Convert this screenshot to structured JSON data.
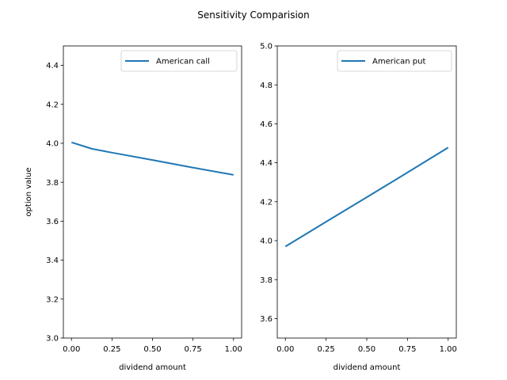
{
  "chart_data": [
    {
      "type": "line",
      "title": "",
      "xlabel": "dividend amount",
      "ylabel": "option value",
      "xlim": [
        -0.05,
        1.05
      ],
      "ylim": [
        3.0,
        4.5
      ],
      "xticks": [
        0.0,
        0.25,
        0.5,
        0.75,
        1.0
      ],
      "xtick_labels": [
        "0.00",
        "0.25",
        "0.50",
        "0.75",
        "1.00"
      ],
      "yticks": [
        3.0,
        3.2,
        3.4,
        3.6,
        3.8,
        4.0,
        4.2,
        4.4
      ],
      "ytick_labels": [
        "3.0",
        "3.2",
        "3.4",
        "3.6",
        "3.8",
        "4.0",
        "4.2",
        "4.4"
      ],
      "legend_position": "top-right",
      "series": [
        {
          "name": "American call",
          "color": "#1f77b4",
          "x": [
            0.0,
            0.125,
            0.25,
            0.5,
            0.75,
            1.0
          ],
          "y": [
            4.005,
            3.972,
            3.952,
            3.914,
            3.875,
            3.838
          ]
        }
      ]
    },
    {
      "type": "line",
      "title": "",
      "xlabel": "dividend amount",
      "ylabel": "",
      "xlim": [
        -0.05,
        1.05
      ],
      "ylim": [
        3.5,
        5.0
      ],
      "xticks": [
        0.0,
        0.25,
        0.5,
        0.75,
        1.0
      ],
      "xtick_labels": [
        "0.00",
        "0.25",
        "0.50",
        "0.75",
        "1.00"
      ],
      "yticks": [
        3.6,
        3.8,
        4.0,
        4.2,
        4.4,
        4.6,
        4.8,
        5.0
      ],
      "ytick_labels": [
        "3.6",
        "3.8",
        "4.0",
        "4.2",
        "4.4",
        "4.6",
        "4.8",
        "5.0"
      ],
      "legend_position": "top-right",
      "series": [
        {
          "name": "American put",
          "color": "#1f77b4",
          "x": [
            0.0,
            0.25,
            0.5,
            0.75,
            1.0
          ],
          "y": [
            3.97,
            4.097,
            4.223,
            4.35,
            4.478
          ]
        }
      ]
    }
  ],
  "figure": {
    "suptitle": "Sensitivity Comparision"
  }
}
